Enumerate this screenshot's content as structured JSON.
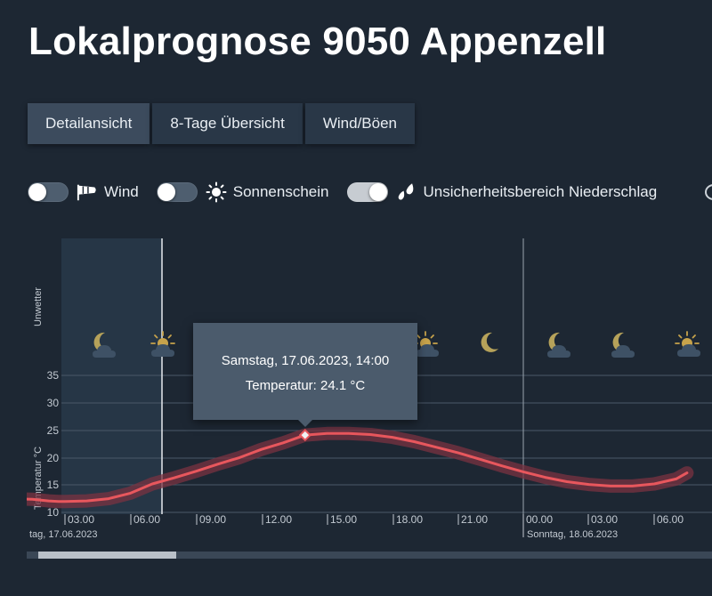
{
  "page": {
    "title": "Lokalprognose 9050 Appenzell"
  },
  "tabs": [
    {
      "label": "Detailansicht",
      "active": true
    },
    {
      "label": "8-Tage Übersicht",
      "active": false
    },
    {
      "label": "Wind/Böen",
      "active": false
    }
  ],
  "toggles": [
    {
      "label": "Wind",
      "on": false,
      "icon": "windsock-icon"
    },
    {
      "label": "Sonnenschein",
      "on": false,
      "icon": "sun-icon"
    },
    {
      "label": "Unsicherheitsbereich Niederschlag",
      "on": true,
      "icon": "raindrops-icon"
    }
  ],
  "chart": {
    "row_label_warnings": "Unwetter",
    "y_axis_label": "Temperatur °C",
    "y_ticks": [
      "10",
      "15",
      "20",
      "25",
      "30",
      "35"
    ],
    "x_ticks": [
      "03.00",
      "06.00",
      "09.00",
      "12.00",
      "15.00",
      "18.00",
      "21.00",
      "00.00",
      "03.00",
      "06.00"
    ],
    "date_labels": [
      "tag, 17.06.2023",
      "Sonntag, 18.06.2023"
    ],
    "weather_icons": [
      "moon-cloud-icon",
      "sun-cloud-icon",
      "sun-cloud-icon",
      "moon-icon",
      "moon-cloud-icon",
      "moon-cloud-icon",
      "sun-cloud-icon"
    ],
    "colors": {
      "line": "#e8575d",
      "band": "#7a3341",
      "background": "#1d2733",
      "past_shade": "#263646"
    }
  },
  "chart_data": {
    "type": "line",
    "ylabel": "Temperatur °C",
    "ylim": [
      10,
      35
    ],
    "x_unit": "hours",
    "series": [
      {
        "x": [
          -0.75,
          0,
          1.5,
          2.25,
          2.7,
          3,
          4,
          5,
          6,
          7,
          8,
          9,
          10,
          11,
          12,
          13,
          14,
          15,
          16,
          17,
          18,
          19,
          20,
          21,
          22,
          23,
          24,
          25,
          26,
          27,
          28,
          29,
          30,
          31,
          31.5
        ],
        "y": [
          12.5,
          12.5,
          12.4,
          12.1,
          12.0,
          12.0,
          12.1,
          12.5,
          13.5,
          15.2,
          16.3,
          17.5,
          18.8,
          20.0,
          21.5,
          22.7,
          24.1,
          24.4,
          24.4,
          24.2,
          23.7,
          22.9,
          21.9,
          20.9,
          19.7,
          18.5,
          17.4,
          16.4,
          15.6,
          15.1,
          14.8,
          14.8,
          15.2,
          16.1,
          17.2
        ]
      }
    ],
    "highlight": {
      "label": "Samstag, 17.06.2023, 14:00",
      "value_label": "Temperatur: 24.1 °C",
      "x": 14,
      "y": 24.1
    }
  }
}
